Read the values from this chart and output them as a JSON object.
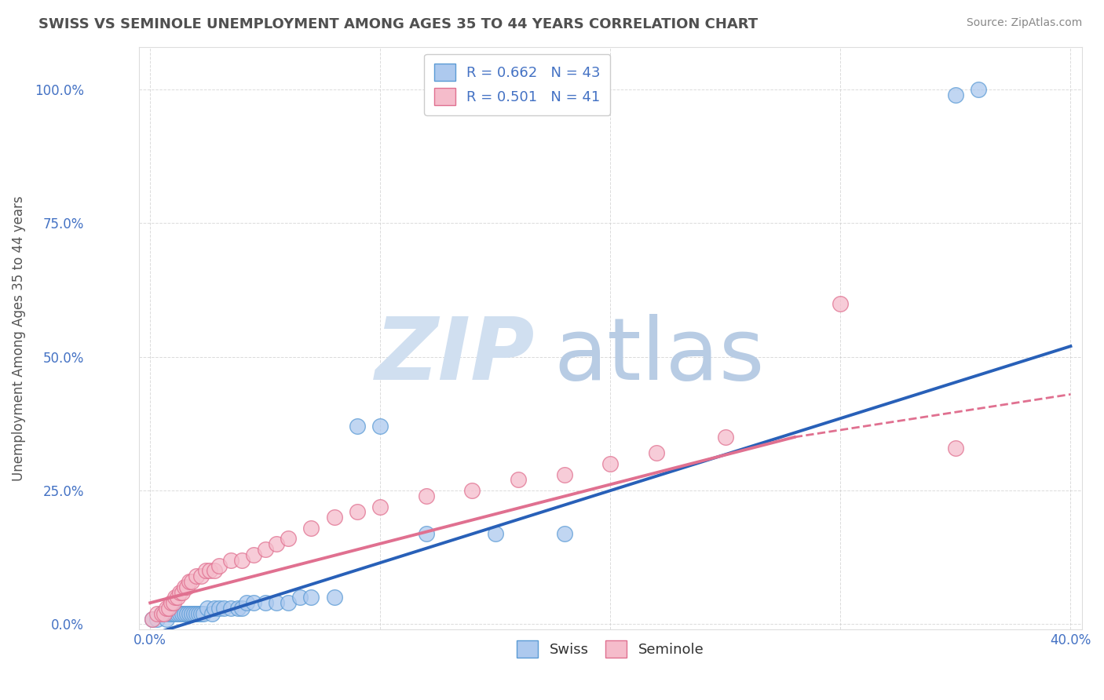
{
  "title": "SWISS VS SEMINOLE UNEMPLOYMENT AMONG AGES 35 TO 44 YEARS CORRELATION CHART",
  "source": "Source: ZipAtlas.com",
  "xlabel": "",
  "ylabel": "Unemployment Among Ages 35 to 44 years",
  "xlim": [
    -0.005,
    0.405
  ],
  "ylim": [
    -0.01,
    1.08
  ],
  "xticks": [
    0.0,
    0.1,
    0.2,
    0.3,
    0.4
  ],
  "xtick_labels": [
    "0.0%",
    "",
    "",
    "",
    "40.0%"
  ],
  "yticks": [
    0.0,
    0.25,
    0.5,
    0.75,
    1.0
  ],
  "ytick_labels": [
    "0.0%",
    "25.0%",
    "50.0%",
    "75.0%",
    "100.0%"
  ],
  "swiss_color": "#adc9ee",
  "swiss_edge_color": "#5b9bd5",
  "seminole_color": "#f5bccb",
  "seminole_edge_color": "#e07090",
  "trend_swiss_color": "#2860b8",
  "trend_seminole_color": "#e07090",
  "R_swiss": 0.662,
  "N_swiss": 43,
  "R_seminole": 0.501,
  "N_seminole": 41,
  "watermark_zip": "ZIP",
  "watermark_atlas": "atlas",
  "watermark_color_zip": "#d0dff0",
  "watermark_color_atlas": "#b8cce4",
  "background_color": "#ffffff",
  "grid_color": "#cccccc",
  "title_color": "#505050",
  "label_color": "#4472c4",
  "swiss_x": [
    0.001,
    0.003,
    0.005,
    0.007,
    0.008,
    0.009,
    0.01,
    0.011,
    0.012,
    0.013,
    0.014,
    0.015,
    0.016,
    0.017,
    0.018,
    0.019,
    0.02,
    0.021,
    0.022,
    0.023,
    0.025,
    0.027,
    0.028,
    0.03,
    0.032,
    0.035,
    0.038,
    0.04,
    0.042,
    0.045,
    0.05,
    0.055,
    0.06,
    0.065,
    0.07,
    0.08,
    0.09,
    0.1,
    0.12,
    0.15,
    0.18,
    0.35,
    0.36
  ],
  "swiss_y": [
    0.01,
    0.01,
    0.02,
    0.01,
    0.02,
    0.02,
    0.02,
    0.02,
    0.02,
    0.02,
    0.02,
    0.02,
    0.02,
    0.02,
    0.02,
    0.02,
    0.02,
    0.02,
    0.02,
    0.02,
    0.03,
    0.02,
    0.03,
    0.03,
    0.03,
    0.03,
    0.03,
    0.03,
    0.04,
    0.04,
    0.04,
    0.04,
    0.04,
    0.05,
    0.05,
    0.05,
    0.37,
    0.37,
    0.17,
    0.17,
    0.17,
    0.99,
    1.0
  ],
  "seminole_x": [
    0.001,
    0.003,
    0.005,
    0.006,
    0.007,
    0.008,
    0.009,
    0.01,
    0.011,
    0.012,
    0.013,
    0.014,
    0.015,
    0.016,
    0.017,
    0.018,
    0.02,
    0.022,
    0.024,
    0.026,
    0.028,
    0.03,
    0.035,
    0.04,
    0.045,
    0.05,
    0.055,
    0.06,
    0.07,
    0.08,
    0.09,
    0.1,
    0.12,
    0.14,
    0.16,
    0.18,
    0.2,
    0.22,
    0.25,
    0.3,
    0.35
  ],
  "seminole_y": [
    0.01,
    0.02,
    0.02,
    0.02,
    0.03,
    0.03,
    0.04,
    0.04,
    0.05,
    0.05,
    0.06,
    0.06,
    0.07,
    0.07,
    0.08,
    0.08,
    0.09,
    0.09,
    0.1,
    0.1,
    0.1,
    0.11,
    0.12,
    0.12,
    0.13,
    0.14,
    0.15,
    0.16,
    0.18,
    0.2,
    0.21,
    0.22,
    0.24,
    0.25,
    0.27,
    0.28,
    0.3,
    0.32,
    0.35,
    0.6,
    0.33
  ],
  "trend_swiss_x0": 0.0,
  "trend_swiss_y0": -0.02,
  "trend_swiss_x1": 0.4,
  "trend_swiss_y1": 0.52,
  "trend_sem_solid_x0": 0.0,
  "trend_sem_solid_y0": 0.04,
  "trend_sem_solid_x1": 0.28,
  "trend_sem_solid_y1": 0.35,
  "trend_sem_dash_x0": 0.28,
  "trend_sem_dash_y0": 0.35,
  "trend_sem_dash_x1": 0.4,
  "trend_sem_dash_y1": 0.43
}
